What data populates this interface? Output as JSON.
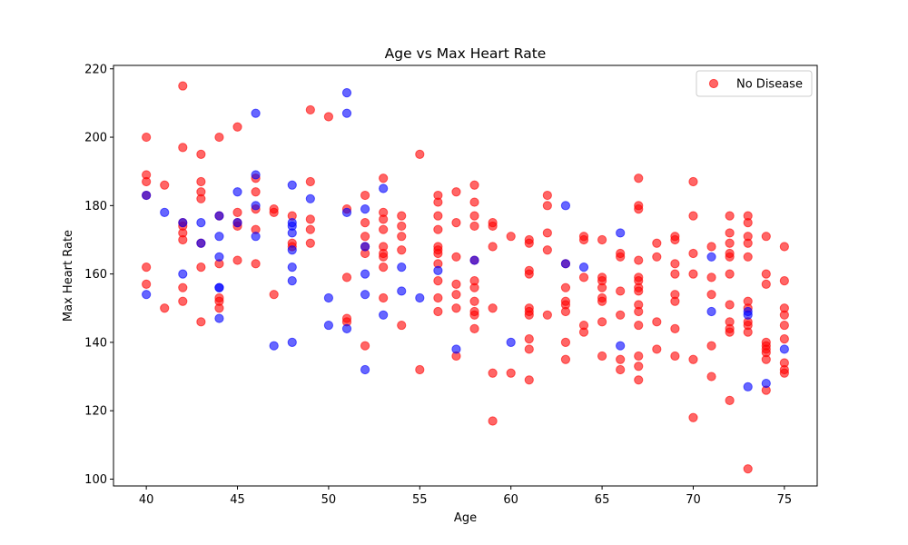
{
  "chart_data": {
    "type": "scatter",
    "title": "Age vs Max Heart Rate",
    "xlabel": "Age",
    "ylabel": "Max Heart Rate",
    "xlim": [
      38.2,
      76.8
    ],
    "ylim": [
      98,
      221
    ],
    "xticks": [
      40,
      45,
      50,
      55,
      60,
      65,
      70,
      75
    ],
    "yticks": [
      100,
      120,
      140,
      160,
      180,
      200,
      220
    ],
    "grid": false,
    "legend": {
      "position": "top-right",
      "entries": [
        "No Disease"
      ]
    },
    "colors": {
      "no_disease": "#ff0000",
      "disease": "#0000ff",
      "point_opacity": 0.6
    },
    "series": [
      {
        "name": "No Disease",
        "color": "#ff0000",
        "points": [
          [
            40,
            189
          ],
          [
            40,
            187
          ],
          [
            40,
            200
          ],
          [
            40,
            157
          ],
          [
            40,
            162
          ],
          [
            40,
            183
          ],
          [
            41,
            186
          ],
          [
            41,
            150
          ],
          [
            42,
            215
          ],
          [
            42,
            197
          ],
          [
            42,
            175
          ],
          [
            42,
            172
          ],
          [
            42,
            170
          ],
          [
            42,
            156
          ],
          [
            42,
            152
          ],
          [
            42,
            174
          ],
          [
            43,
            195
          ],
          [
            43,
            187
          ],
          [
            43,
            184
          ],
          [
            43,
            182
          ],
          [
            43,
            169
          ],
          [
            43,
            162
          ],
          [
            43,
            146
          ],
          [
            44,
            200
          ],
          [
            44,
            177
          ],
          [
            44,
            163
          ],
          [
            44,
            153
          ],
          [
            44,
            152
          ],
          [
            44,
            150
          ],
          [
            45,
            203
          ],
          [
            45,
            178
          ],
          [
            45,
            175
          ],
          [
            45,
            174
          ],
          [
            45,
            164
          ],
          [
            46,
            188
          ],
          [
            46,
            184
          ],
          [
            46,
            179
          ],
          [
            46,
            173
          ],
          [
            46,
            163
          ],
          [
            47,
            179
          ],
          [
            47,
            178
          ],
          [
            47,
            154
          ],
          [
            48,
            177
          ],
          [
            48,
            169
          ],
          [
            48,
            168
          ],
          [
            49,
            208
          ],
          [
            49,
            187
          ],
          [
            49,
            176
          ],
          [
            49,
            173
          ],
          [
            49,
            169
          ],
          [
            50,
            206
          ],
          [
            51,
            179
          ],
          [
            51,
            159
          ],
          [
            51,
            147
          ],
          [
            51,
            146
          ],
          [
            52,
            183
          ],
          [
            52,
            175
          ],
          [
            52,
            171
          ],
          [
            52,
            166
          ],
          [
            52,
            168
          ],
          [
            52,
            139
          ],
          [
            53,
            188
          ],
          [
            53,
            178
          ],
          [
            53,
            176
          ],
          [
            53,
            173
          ],
          [
            53,
            168
          ],
          [
            53,
            166
          ],
          [
            53,
            165
          ],
          [
            53,
            162
          ],
          [
            53,
            153
          ],
          [
            54,
            177
          ],
          [
            54,
            174
          ],
          [
            54,
            171
          ],
          [
            54,
            167
          ],
          [
            54,
            145
          ],
          [
            55,
            195
          ],
          [
            55,
            132
          ],
          [
            56,
            183
          ],
          [
            56,
            181
          ],
          [
            56,
            177
          ],
          [
            56,
            173
          ],
          [
            56,
            168
          ],
          [
            56,
            167
          ],
          [
            56,
            166
          ],
          [
            56,
            163
          ],
          [
            56,
            158
          ],
          [
            56,
            153
          ],
          [
            56,
            149
          ],
          [
            57,
            184
          ],
          [
            57,
            175
          ],
          [
            57,
            165
          ],
          [
            57,
            157
          ],
          [
            57,
            154
          ],
          [
            57,
            150
          ],
          [
            57,
            136
          ],
          [
            58,
            186
          ],
          [
            58,
            181
          ],
          [
            58,
            177
          ],
          [
            58,
            174
          ],
          [
            58,
            164
          ],
          [
            58,
            158
          ],
          [
            58,
            156
          ],
          [
            58,
            152
          ],
          [
            58,
            149
          ],
          [
            58,
            148
          ],
          [
            58,
            144
          ],
          [
            59,
            175
          ],
          [
            59,
            174
          ],
          [
            59,
            168
          ],
          [
            59,
            150
          ],
          [
            59,
            131
          ],
          [
            59,
            117
          ],
          [
            60,
            171
          ],
          [
            60,
            131
          ],
          [
            61,
            170
          ],
          [
            61,
            169
          ],
          [
            61,
            161
          ],
          [
            61,
            160
          ],
          [
            61,
            150
          ],
          [
            61,
            149
          ],
          [
            61,
            148
          ],
          [
            61,
            141
          ],
          [
            61,
            138
          ],
          [
            61,
            129
          ],
          [
            62,
            183
          ],
          [
            62,
            180
          ],
          [
            62,
            172
          ],
          [
            62,
            167
          ],
          [
            62,
            148
          ],
          [
            63,
            163
          ],
          [
            63,
            156
          ],
          [
            63,
            152
          ],
          [
            63,
            151
          ],
          [
            63,
            149
          ],
          [
            63,
            140
          ],
          [
            63,
            135
          ],
          [
            64,
            171
          ],
          [
            64,
            170
          ],
          [
            64,
            159
          ],
          [
            64,
            145
          ],
          [
            64,
            143
          ],
          [
            65,
            170
          ],
          [
            65,
            159
          ],
          [
            65,
            158
          ],
          [
            65,
            156
          ],
          [
            65,
            153
          ],
          [
            65,
            152
          ],
          [
            65,
            146
          ],
          [
            65,
            136
          ],
          [
            66,
            166
          ],
          [
            66,
            165
          ],
          [
            66,
            155
          ],
          [
            66,
            148
          ],
          [
            66,
            135
          ],
          [
            66,
            132
          ],
          [
            67,
            188
          ],
          [
            67,
            180
          ],
          [
            67,
            179
          ],
          [
            67,
            164
          ],
          [
            67,
            159
          ],
          [
            67,
            158
          ],
          [
            67,
            156
          ],
          [
            67,
            155
          ],
          [
            67,
            151
          ],
          [
            67,
            149
          ],
          [
            67,
            145
          ],
          [
            67,
            136
          ],
          [
            67,
            133
          ],
          [
            67,
            129
          ],
          [
            68,
            169
          ],
          [
            68,
            165
          ],
          [
            68,
            146
          ],
          [
            68,
            138
          ],
          [
            69,
            171
          ],
          [
            69,
            170
          ],
          [
            69,
            163
          ],
          [
            69,
            160
          ],
          [
            69,
            154
          ],
          [
            69,
            152
          ],
          [
            69,
            144
          ],
          [
            69,
            136
          ],
          [
            70,
            187
          ],
          [
            70,
            177
          ],
          [
            70,
            166
          ],
          [
            70,
            160
          ],
          [
            70,
            135
          ],
          [
            70,
            118
          ],
          [
            71,
            168
          ],
          [
            71,
            159
          ],
          [
            71,
            154
          ],
          [
            71,
            139
          ],
          [
            71,
            130
          ],
          [
            72,
            177
          ],
          [
            72,
            172
          ],
          [
            72,
            169
          ],
          [
            72,
            166
          ],
          [
            72,
            165
          ],
          [
            72,
            160
          ],
          [
            72,
            151
          ],
          [
            72,
            146
          ],
          [
            72,
            144
          ],
          [
            72,
            143
          ],
          [
            72,
            123
          ],
          [
            73,
            177
          ],
          [
            73,
            175
          ],
          [
            73,
            171
          ],
          [
            73,
            169
          ],
          [
            73,
            165
          ],
          [
            73,
            152
          ],
          [
            73,
            150
          ],
          [
            73,
            146
          ],
          [
            73,
            145
          ],
          [
            73,
            143
          ],
          [
            73,
            103
          ],
          [
            74,
            171
          ],
          [
            74,
            160
          ],
          [
            74,
            157
          ],
          [
            74,
            140
          ],
          [
            74,
            139
          ],
          [
            74,
            138
          ],
          [
            74,
            137
          ],
          [
            74,
            135
          ],
          [
            74,
            126
          ],
          [
            75,
            168
          ],
          [
            75,
            158
          ],
          [
            75,
            150
          ],
          [
            75,
            148
          ],
          [
            75,
            145
          ],
          [
            75,
            141
          ],
          [
            75,
            134
          ],
          [
            75,
            132
          ],
          [
            75,
            131
          ]
        ]
      },
      {
        "name": "",
        "color": "#0000ff",
        "points": [
          [
            40,
            183
          ],
          [
            40,
            154
          ],
          [
            41,
            178
          ],
          [
            42,
            175
          ],
          [
            42,
            160
          ],
          [
            43,
            175
          ],
          [
            43,
            169
          ],
          [
            44,
            177
          ],
          [
            44,
            171
          ],
          [
            44,
            165
          ],
          [
            44,
            156
          ],
          [
            44,
            156
          ],
          [
            44,
            147
          ],
          [
            45,
            184
          ],
          [
            45,
            175
          ],
          [
            46,
            207
          ],
          [
            46,
            189
          ],
          [
            46,
            180
          ],
          [
            46,
            171
          ],
          [
            47,
            139
          ],
          [
            48,
            186
          ],
          [
            48,
            175
          ],
          [
            48,
            174
          ],
          [
            48,
            172
          ],
          [
            48,
            167
          ],
          [
            48,
            162
          ],
          [
            48,
            158
          ],
          [
            48,
            140
          ],
          [
            49,
            182
          ],
          [
            50,
            153
          ],
          [
            50,
            145
          ],
          [
            51,
            213
          ],
          [
            51,
            207
          ],
          [
            51,
            178
          ],
          [
            51,
            144
          ],
          [
            52,
            179
          ],
          [
            52,
            168
          ],
          [
            52,
            160
          ],
          [
            52,
            154
          ],
          [
            52,
            132
          ],
          [
            53,
            185
          ],
          [
            53,
            148
          ],
          [
            54,
            162
          ],
          [
            54,
            155
          ],
          [
            55,
            153
          ],
          [
            56,
            161
          ],
          [
            57,
            138
          ],
          [
            58,
            164
          ],
          [
            60,
            140
          ],
          [
            63,
            180
          ],
          [
            63,
            163
          ],
          [
            64,
            162
          ],
          [
            66,
            172
          ],
          [
            66,
            139
          ],
          [
            71,
            165
          ],
          [
            71,
            149
          ],
          [
            73,
            149
          ],
          [
            73,
            148
          ],
          [
            73,
            127
          ],
          [
            74,
            128
          ],
          [
            75,
            138
          ]
        ]
      }
    ]
  }
}
